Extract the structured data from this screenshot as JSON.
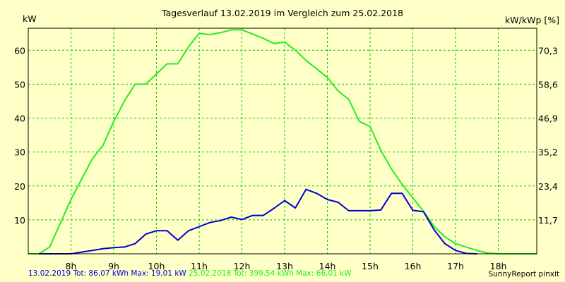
{
  "title": "Tagesverlauf 13.02.2019 im Vergleich zum 25.02.2018",
  "left_unit": "kW",
  "right_unit": "kW/kWp [%]",
  "footer": {
    "series1_text": "13.02.2019 Tot: 86,07 kWh Max: 19,01 kW",
    "series2_text": "25.02.2018 Tot: 399,54 kWh Max: 66,01 kW",
    "brand": "SunnyReport pinxit"
  },
  "colors": {
    "background": "#FFFFC8",
    "plot_frame": "#000000",
    "grid": "#00C800",
    "series1": "#0000D0",
    "series2": "#22EE22"
  },
  "chart_data": {
    "type": "line",
    "title": "Tagesverlauf 13.02.2019 im Vergleich zum 25.02.2018",
    "xlim": [
      7,
      18.9
    ],
    "ylim": [
      0,
      66.5
    ],
    "grid": true,
    "x_ticks": [
      "8h",
      "9h",
      "10h",
      "11h",
      "12h",
      "13h",
      "14h",
      "15h",
      "16h",
      "17h",
      "18h"
    ],
    "y_ticks_left": [
      "10",
      "20",
      "30",
      "40",
      "50",
      "60"
    ],
    "y_ticks_right": [
      "11,7",
      "23,4",
      "35,2",
      "46,9",
      "58,6",
      "70,3"
    ],
    "series": [
      {
        "name": "13.02.2019",
        "color": "#0000D0",
        "x": [
          7.25,
          7.5,
          7.75,
          8.0,
          8.25,
          8.5,
          8.75,
          9.0,
          9.25,
          9.5,
          9.75,
          10.0,
          10.25,
          10.5,
          10.75,
          11.0,
          11.25,
          11.5,
          11.75,
          12.0,
          12.25,
          12.5,
          12.75,
          13.0,
          13.25,
          13.5,
          13.75,
          14.0,
          14.25,
          14.5,
          14.75,
          15.0,
          15.25,
          15.5,
          15.75,
          16.0,
          16.25,
          16.5,
          16.75,
          17.0,
          17.25,
          17.5
        ],
        "y": [
          0,
          0,
          0,
          0,
          0.5,
          1.0,
          1.5,
          1.8,
          2.0,
          3.0,
          5.8,
          6.8,
          6.8,
          4.0,
          6.8,
          8.0,
          9.2,
          9.8,
          10.8,
          10.1,
          11.3,
          11.3,
          13.4,
          15.7,
          13.5,
          19.0,
          17.8,
          16.0,
          15.2,
          12.7,
          12.7,
          12.7,
          12.9,
          17.8,
          17.8,
          12.8,
          12.4,
          7.0,
          3.0,
          1.0,
          0.1,
          0
        ]
      },
      {
        "name": "25.02.2018",
        "color": "#22EE22",
        "x": [
          7.0,
          7.25,
          7.5,
          7.75,
          8.0,
          8.25,
          8.5,
          8.75,
          9.0,
          9.25,
          9.5,
          9.75,
          10.0,
          10.25,
          10.5,
          10.75,
          11.0,
          11.25,
          11.5,
          11.75,
          12.0,
          12.25,
          12.5,
          12.75,
          13.0,
          13.25,
          13.5,
          13.75,
          14.0,
          14.25,
          14.5,
          14.75,
          15.0,
          15.25,
          15.5,
          15.75,
          16.0,
          16.25,
          16.5,
          16.75,
          17.0,
          17.25,
          17.5,
          17.75,
          18.0,
          18.25,
          18.5,
          18.9
        ],
        "y": [
          0,
          0,
          2.0,
          9.0,
          16.0,
          22.0,
          28.0,
          32.0,
          39.0,
          45.0,
          50.0,
          50.0,
          53.0,
          56.0,
          56.0,
          61.0,
          65.0,
          64.6,
          65.2,
          66.0,
          66.0,
          64.8,
          63.5,
          62.0,
          62.4,
          60.0,
          57.0,
          54.5,
          52.0,
          48.0,
          45.5,
          39.0,
          37.5,
          30.5,
          25.0,
          20.5,
          16.5,
          12.5,
          8.0,
          5.0,
          3.0,
          2.0,
          1.0,
          0.2,
          0,
          0,
          0,
          0
        ]
      }
    ]
  }
}
